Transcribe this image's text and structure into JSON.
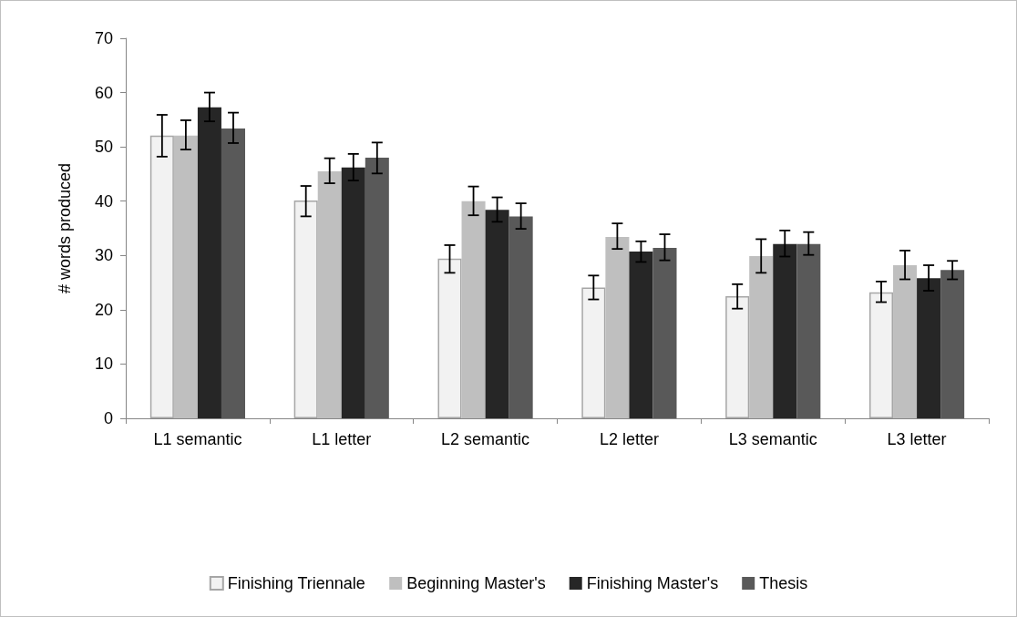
{
  "chart_data": {
    "type": "bar",
    "ylabel": "# words produced",
    "categories": [
      "L1 semantic",
      "L1 letter",
      "L2 semantic",
      "L2 letter",
      "L3 semantic",
      "L3 letter"
    ],
    "series": [
      {
        "name": "Finishing Triennale",
        "color": "#f2f2f2",
        "values": [
          52.1,
          40.1,
          29.4,
          24.1,
          22.5,
          23.2
        ],
        "errors": [
          [
            48.2,
            55.9
          ],
          [
            37.2,
            42.8
          ],
          [
            26.8,
            31.9
          ],
          [
            21.9,
            26.3
          ],
          [
            20.2,
            24.7
          ],
          [
            21.4,
            25.2
          ]
        ]
      },
      {
        "name": "Beginning Master's",
        "color": "#bfbfbf",
        "values": [
          52.1,
          45.5,
          40.0,
          33.4,
          29.9,
          28.2
        ],
        "errors": [
          [
            49.5,
            54.9
          ],
          [
            43.3,
            47.9
          ],
          [
            37.4,
            42.7
          ],
          [
            31.2,
            35.9
          ],
          [
            26.8,
            33.0
          ],
          [
            25.6,
            30.9
          ]
        ]
      },
      {
        "name": "Finishing Master's",
        "color": "#262626",
        "values": [
          57.3,
          46.2,
          38.4,
          30.7,
          32.1,
          25.8
        ],
        "errors": [
          [
            54.7,
            60.0
          ],
          [
            43.8,
            48.7
          ],
          [
            36.2,
            40.7
          ],
          [
            28.8,
            32.6
          ],
          [
            29.8,
            34.6
          ],
          [
            23.5,
            28.2
          ]
        ]
      },
      {
        "name": "Thesis",
        "color": "#595959",
        "values": [
          53.4,
          48.0,
          37.2,
          31.4,
          32.1,
          27.3
        ],
        "errors": [
          [
            50.7,
            56.3
          ],
          [
            45.1,
            50.8
          ],
          [
            34.9,
            39.6
          ],
          [
            29.1,
            33.9
          ],
          [
            30.1,
            34.3
          ],
          [
            25.6,
            29.0
          ]
        ]
      }
    ],
    "ylim": [
      0,
      70
    ],
    "yticks": [
      0,
      10,
      20,
      30,
      40,
      50,
      60,
      70
    ],
    "grid": false,
    "legend": "bottom"
  }
}
